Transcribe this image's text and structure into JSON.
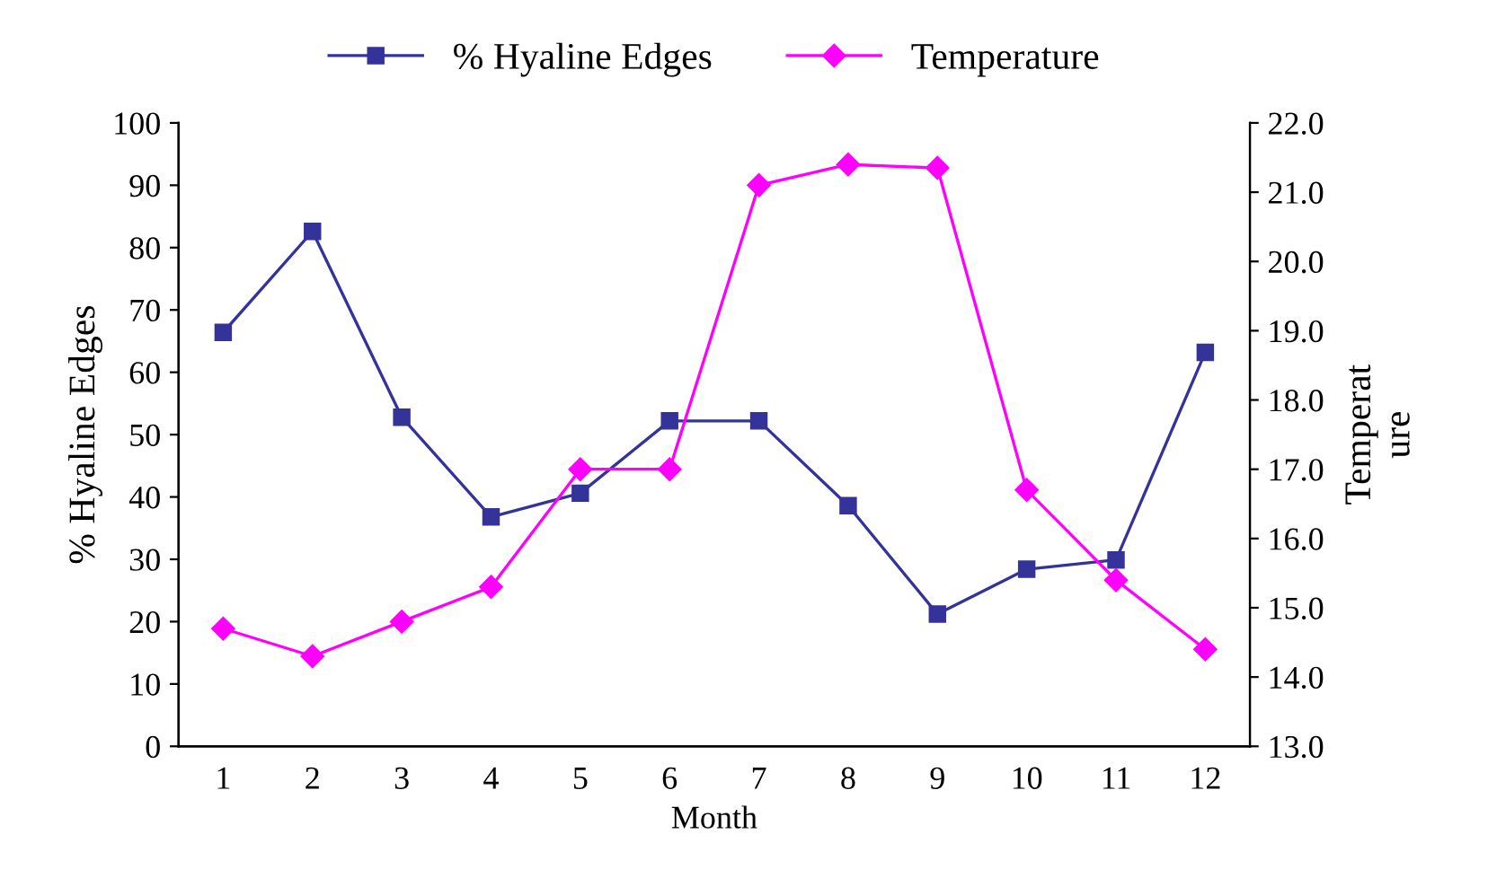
{
  "chart_data": {
    "type": "line",
    "xlabel": "Month",
    "ylabel": "% Hyaline Edges",
    "y2label": "Temperat\nure",
    "categories": [
      "1",
      "2",
      "3",
      "4",
      "5",
      "6",
      "7",
      "8",
      "9",
      "10",
      "11",
      "12"
    ],
    "series": [
      {
        "name": "% Hyaline Edges",
        "color": "#333399",
        "marker": "square",
        "values": [
          66.4,
          82.6,
          52.8,
          36.8,
          40.6,
          52.2,
          52.2,
          38.6,
          21.2,
          28.4,
          29.9,
          63.2
        ]
      },
      {
        "name": "Temperature",
        "color": "#ff00ff",
        "marker": "diamond",
        "axis": "y2",
        "values": [
          14.7,
          14.3,
          14.8,
          15.3,
          17.0,
          17.0,
          21.1,
          21.4,
          21.35,
          16.7,
          15.4,
          14.4
        ]
      }
    ],
    "ylim": [
      0,
      100
    ],
    "yticks": [
      0,
      10,
      20,
      30,
      40,
      50,
      60,
      70,
      80,
      90,
      100
    ],
    "y2lim": [
      13.0,
      22.0
    ],
    "y2ticks": [
      {
        "value": 13,
        "label": "13.0"
      },
      {
        "value": 14,
        "label": "14.0"
      },
      {
        "value": 15,
        "label": "15.0"
      },
      {
        "value": 16,
        "label": "16.0"
      },
      {
        "value": 17,
        "label": "17.0"
      },
      {
        "value": 18,
        "label": "18.0"
      },
      {
        "value": 19,
        "label": "19.0"
      },
      {
        "value": 20,
        "label": "20.0"
      },
      {
        "value": 21,
        "label": "21.0"
      },
      {
        "value": 22,
        "label": "22.0"
      }
    ],
    "legend": "top",
    "grid": false,
    "line_style": "solid"
  }
}
